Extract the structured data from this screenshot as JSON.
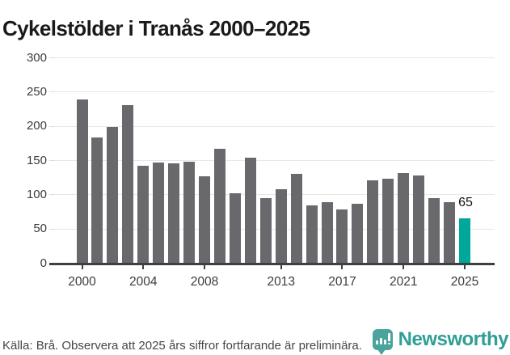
{
  "title": "Cykelstölder i Tranås 2000–2025",
  "footer": {
    "source_note": "Källa: Brå. Observera att 2025 års siffror fortfarande är preliminära."
  },
  "branding": {
    "name": "Newsworthy",
    "icon": "bar-chart-speech-bubble-icon"
  },
  "colors": {
    "bar": "#69686d",
    "highlight": "#00a89c",
    "axis": "#3f3f3f",
    "grid": "#e7e7e7",
    "y_stub": "#dcdcdc",
    "brand_icon": "#4aa39d",
    "brand_text": "#2f9e96"
  },
  "chart_data": {
    "type": "bar",
    "title": "Cykelstölder i Tranås 2000–2025",
    "categories": [
      2000,
      2001,
      2002,
      2003,
      2004,
      2005,
      2006,
      2007,
      2008,
      2009,
      2010,
      2011,
      2012,
      2013,
      2014,
      2015,
      2016,
      2017,
      2018,
      2019,
      2020,
      2021,
      2022,
      2023,
      2024,
      2025
    ],
    "values": [
      238,
      183,
      199,
      230,
      142,
      146,
      145,
      148,
      126,
      167,
      101,
      153,
      94,
      108,
      130,
      84,
      89,
      78,
      86,
      120,
      123,
      131,
      127,
      94,
      88,
      65
    ],
    "highlight_index": 25,
    "highlight_value_label": "65",
    "xlabel": "",
    "ylabel": "",
    "ylim": [
      0,
      300
    ],
    "yticks": [
      0,
      50,
      100,
      150,
      200,
      250,
      300
    ],
    "xtick_years": [
      2000,
      2004,
      2008,
      2013,
      2017,
      2021,
      2025
    ],
    "grid": true,
    "legend_position": "none"
  }
}
